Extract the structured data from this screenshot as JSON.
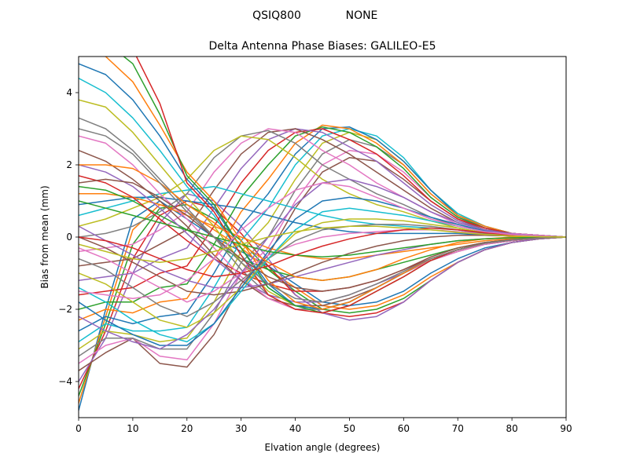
{
  "suptitle": {
    "antenna": "QSIQ800",
    "radome": "NONE"
  },
  "chart_data": {
    "type": "line",
    "title": "Delta Antenna Phase Biases: GALILEO-E5",
    "xlabel": "Elvation angle (degrees)",
    "ylabel": "Bias from mean (mm)",
    "xlim": [
      0,
      90
    ],
    "ylim": [
      -5,
      5
    ],
    "xticks": [
      0,
      10,
      20,
      30,
      40,
      50,
      60,
      70,
      80,
      90
    ],
    "yticks": [
      -4,
      -2,
      0,
      2,
      4
    ],
    "grid": false,
    "x": [
      0,
      5,
      10,
      15,
      20,
      25,
      30,
      35,
      40,
      45,
      50,
      55,
      60,
      65,
      70,
      75,
      80,
      85,
      90
    ],
    "colors": [
      "#1f77b4",
      "#ff7f0e",
      "#2ca02c",
      "#d62728",
      "#9467bd",
      "#8c564b",
      "#e377c2",
      "#7f7f7f",
      "#bcbd22",
      "#17becf"
    ],
    "series": [
      {
        "values": [
          -4.8,
          -2.0,
          0.5,
          1.0,
          0.5,
          0.0,
          -0.4,
          -0.8,
          -1.3,
          -1.8,
          -1.9,
          -1.8,
          -1.5,
          -1.0,
          -0.6,
          -0.3,
          -0.15,
          -0.05,
          0.0
        ]
      },
      {
        "values": [
          -4.6,
          -2.2,
          0.2,
          0.9,
          0.7,
          0.2,
          -0.3,
          -0.9,
          -1.4,
          -1.9,
          -2.0,
          -1.9,
          -1.6,
          -1.1,
          -0.7,
          -0.35,
          -0.15,
          -0.05,
          0.0
        ]
      },
      {
        "values": [
          -4.4,
          -2.4,
          -0.2,
          0.8,
          0.9,
          0.5,
          -0.1,
          -0.9,
          -1.5,
          -2.0,
          -2.1,
          -2.0,
          -1.7,
          -1.2,
          -0.7,
          -0.35,
          -0.15,
          -0.05,
          0.0
        ]
      },
      {
        "values": [
          -4.2,
          -2.6,
          -0.6,
          0.6,
          1.0,
          0.8,
          0.1,
          -0.8,
          -1.6,
          -2.1,
          -2.2,
          -2.1,
          -1.8,
          -1.2,
          -0.7,
          -0.35,
          -0.15,
          -0.05,
          0.0
        ]
      },
      {
        "values": [
          -4.0,
          -2.8,
          -1.0,
          0.4,
          1.2,
          1.0,
          0.3,
          -0.6,
          -1.6,
          -2.1,
          -2.3,
          -2.2,
          -1.8,
          -1.2,
          -0.7,
          -0.35,
          -0.15,
          -0.05,
          0.0
        ]
      },
      {
        "values": [
          -3.7,
          -3.2,
          -2.8,
          -3.5,
          -3.6,
          -2.7,
          -1.3,
          -0.5,
          0.8,
          1.8,
          2.2,
          2.1,
          1.6,
          1.0,
          0.5,
          0.2,
          0.1,
          0.05,
          0.0
        ]
      },
      {
        "values": [
          -3.5,
          -3.0,
          -2.8,
          -3.3,
          -3.4,
          -2.4,
          -1.0,
          -0.3,
          1.0,
          2.0,
          2.4,
          2.3,
          1.8,
          1.1,
          0.55,
          0.25,
          0.1,
          0.05,
          0.0
        ]
      },
      {
        "values": [
          -3.3,
          -2.8,
          -2.8,
          -3.1,
          -3.1,
          -2.1,
          -0.7,
          0.0,
          1.3,
          2.3,
          2.7,
          2.5,
          2.0,
          1.2,
          0.6,
          0.25,
          0.1,
          0.05,
          0.0
        ]
      },
      {
        "values": [
          -3.1,
          -2.6,
          -2.7,
          -2.9,
          -2.8,
          -1.8,
          -0.4,
          0.4,
          1.6,
          2.6,
          2.9,
          2.7,
          2.1,
          1.3,
          0.65,
          0.3,
          0.1,
          0.05,
          0.0
        ]
      },
      {
        "values": [
          -2.9,
          -2.4,
          -2.6,
          -2.6,
          -2.5,
          -1.4,
          -0.1,
          0.8,
          2.0,
          2.8,
          3.0,
          2.8,
          2.2,
          1.3,
          0.65,
          0.3,
          0.1,
          0.05,
          0.0
        ]
      },
      {
        "values": [
          -2.6,
          -2.2,
          -2.4,
          -2.2,
          -2.1,
          -1.0,
          0.3,
          1.2,
          2.3,
          3.0,
          3.05,
          2.7,
          2.1,
          1.3,
          0.6,
          0.3,
          0.1,
          0.05,
          0.0
        ]
      },
      {
        "values": [
          -2.3,
          -2.0,
          -2.1,
          -1.8,
          -1.7,
          -0.6,
          0.7,
          1.6,
          2.6,
          3.1,
          3.0,
          2.6,
          2.0,
          1.2,
          0.6,
          0.3,
          0.1,
          0.05,
          0.0
        ]
      },
      {
        "values": [
          -2.0,
          -1.8,
          -1.8,
          -1.4,
          -1.3,
          -0.2,
          1.1,
          2.0,
          2.8,
          3.05,
          2.9,
          2.5,
          1.9,
          1.1,
          0.55,
          0.25,
          0.1,
          0.05,
          0.0
        ]
      },
      {
        "values": [
          -1.6,
          -1.5,
          -1.4,
          -1.0,
          -0.8,
          0.3,
          1.5,
          2.4,
          2.9,
          3.0,
          2.7,
          2.3,
          1.7,
          1.0,
          0.5,
          0.25,
          0.1,
          0.05,
          0.0
        ]
      },
      {
        "values": [
          -1.2,
          -1.1,
          -1.0,
          -0.6,
          -0.3,
          0.8,
          1.9,
          2.7,
          3.0,
          2.9,
          2.5,
          2.1,
          1.5,
          0.9,
          0.45,
          0.2,
          0.1,
          0.05,
          0.0
        ]
      },
      {
        "values": [
          -0.8,
          -0.7,
          -0.6,
          -0.2,
          0.2,
          1.3,
          2.3,
          2.9,
          3.0,
          2.7,
          2.3,
          1.8,
          1.3,
          0.8,
          0.4,
          0.2,
          0.1,
          0.05,
          0.0
        ]
      },
      {
        "values": [
          -0.4,
          -0.3,
          -0.2,
          0.2,
          0.7,
          1.8,
          2.6,
          3.0,
          2.9,
          2.4,
          2.0,
          1.5,
          1.1,
          0.7,
          0.35,
          0.15,
          0.1,
          0.05,
          0.0
        ]
      },
      {
        "values": [
          0.0,
          0.1,
          0.3,
          0.7,
          1.2,
          2.2,
          2.8,
          2.95,
          2.6,
          2.0,
          1.6,
          1.2,
          0.9,
          0.55,
          0.3,
          0.15,
          0.05,
          0.02,
          0.0
        ]
      },
      {
        "values": [
          0.3,
          0.5,
          0.8,
          1.1,
          1.6,
          2.4,
          2.8,
          2.7,
          2.2,
          1.6,
          1.2,
          0.9,
          0.7,
          0.45,
          0.25,
          0.1,
          0.05,
          0.02,
          0.0
        ]
      },
      {
        "values": [
          0.6,
          0.8,
          1.0,
          1.2,
          1.3,
          1.4,
          1.2,
          1.0,
          0.8,
          0.6,
          0.45,
          0.35,
          0.3,
          0.25,
          0.2,
          0.1,
          0.05,
          0.02,
          0.0
        ]
      },
      {
        "values": [
          0.9,
          1.0,
          1.1,
          1.1,
          1.0,
          0.9,
          0.8,
          0.6,
          0.4,
          0.25,
          0.15,
          0.1,
          0.1,
          0.1,
          0.1,
          0.05,
          0.03,
          0.01,
          0.0
        ]
      },
      {
        "values": [
          1.2,
          1.2,
          1.1,
          0.9,
          0.6,
          0.3,
          0.0,
          -0.3,
          -0.5,
          -0.6,
          -0.6,
          -0.5,
          -0.4,
          -0.3,
          -0.2,
          -0.1,
          -0.05,
          -0.02,
          0.0
        ]
      },
      {
        "values": [
          1.4,
          1.3,
          1.0,
          0.6,
          0.2,
          -0.2,
          -0.6,
          -0.9,
          -1.1,
          -1.2,
          -1.1,
          -0.9,
          -0.7,
          -0.5,
          -0.3,
          -0.15,
          -0.07,
          -0.02,
          0.0
        ]
      },
      {
        "values": [
          1.7,
          1.5,
          1.1,
          0.5,
          -0.1,
          -0.6,
          -1.0,
          -1.3,
          -1.5,
          -1.5,
          -1.4,
          -1.2,
          -0.9,
          -0.6,
          -0.35,
          -0.17,
          -0.08,
          -0.03,
          0.0
        ]
      },
      {
        "values": [
          2.0,
          1.8,
          1.4,
          0.8,
          0.1,
          -0.6,
          -1.2,
          -1.6,
          -1.8,
          -1.8,
          -1.6,
          -1.3,
          -1.0,
          -0.65,
          -0.4,
          -0.2,
          -0.1,
          -0.03,
          0.0
        ]
      },
      {
        "values": [
          2.4,
          2.1,
          1.6,
          1.0,
          0.3,
          -0.5,
          -1.2,
          -1.7,
          -1.9,
          -1.9,
          -1.7,
          -1.4,
          -1.0,
          -0.65,
          -0.4,
          -0.2,
          -0.1,
          -0.03,
          0.0
        ]
      },
      {
        "values": [
          2.8,
          2.6,
          2.0,
          1.2,
          0.5,
          -0.3,
          -1.1,
          -1.7,
          -2.0,
          -2.0,
          -1.8,
          -1.4,
          -1.0,
          -0.65,
          -0.4,
          -0.2,
          -0.1,
          -0.03,
          0.0
        ]
      },
      {
        "values": [
          3.3,
          3.0,
          2.4,
          1.6,
          0.8,
          0.0,
          -0.9,
          -1.6,
          -2.0,
          -2.0,
          -1.8,
          -1.4,
          -1.0,
          -0.6,
          -0.35,
          -0.17,
          -0.08,
          -0.03,
          0.0
        ]
      },
      {
        "values": [
          3.8,
          3.6,
          2.9,
          2.0,
          1.1,
          0.3,
          -0.7,
          -1.5,
          -1.9,
          -2.0,
          -1.8,
          -1.4,
          -1.0,
          -0.6,
          -0.35,
          -0.17,
          -0.08,
          -0.03,
          0.0
        ]
      },
      {
        "values": [
          4.4,
          4.0,
          3.3,
          2.4,
          1.4,
          0.6,
          -0.5,
          -1.4,
          -1.9,
          -2.0,
          -1.8,
          -1.4,
          -1.0,
          -0.6,
          -0.35,
          -0.17,
          -0.08,
          -0.03,
          0.0
        ]
      },
      {
        "values": [
          4.8,
          4.5,
          3.8,
          2.8,
          1.6,
          0.8,
          -0.3,
          -1.3,
          -1.9,
          -2.0,
          -1.8,
          -1.4,
          -1.0,
          -0.6,
          -0.35,
          -0.17,
          -0.08,
          -0.03,
          0.0
        ]
      },
      {
        "values": [
          5.2,
          5.0,
          4.3,
          3.1,
          1.8,
          1.0,
          -0.1,
          -1.2,
          -1.8,
          -2.0,
          -1.8,
          -1.4,
          -1.0,
          -0.6,
          -0.35,
          -0.17,
          -0.08,
          -0.03,
          0.0
        ]
      },
      {
        "values": [
          5.6,
          5.4,
          4.8,
          3.4,
          1.7,
          0.9,
          -0.3,
          -1.4,
          -1.9,
          -2.1,
          -1.9,
          -1.5,
          -1.1,
          -0.65,
          -0.35,
          -0.17,
          -0.08,
          -0.03,
          0.0
        ]
      },
      {
        "values": [
          6.0,
          5.8,
          5.2,
          3.7,
          1.5,
          0.7,
          -0.5,
          -1.6,
          -2.0,
          -2.1,
          -1.9,
          -1.5,
          -1.1,
          -0.65,
          -0.35,
          -0.17,
          -0.08,
          -0.03,
          0.0
        ]
      },
      {
        "values": [
          0.3,
          -0.1,
          -0.5,
          -0.9,
          -1.2,
          -1.4,
          -1.4,
          -1.3,
          -1.1,
          -0.9,
          -0.7,
          -0.5,
          -0.35,
          -0.2,
          -0.1,
          -0.05,
          -0.02,
          -0.01,
          0.0
        ]
      },
      {
        "values": [
          0.0,
          -0.3,
          -0.7,
          -1.1,
          -1.5,
          -1.6,
          -1.5,
          -1.3,
          -1.0,
          -0.7,
          -0.45,
          -0.25,
          -0.1,
          0.0,
          0.05,
          0.05,
          0.03,
          0.01,
          0.0
        ]
      },
      {
        "values": [
          -0.3,
          -0.6,
          -1.0,
          -1.4,
          -1.8,
          -1.5,
          -1.0,
          -0.5,
          -0.2,
          0.0,
          0.1,
          0.15,
          0.2,
          0.2,
          0.15,
          0.1,
          0.05,
          0.02,
          0.0
        ]
      },
      {
        "values": [
          -0.6,
          -0.9,
          -1.4,
          -1.9,
          -2.2,
          -1.8,
          -1.2,
          -0.6,
          -0.1,
          0.2,
          0.3,
          0.35,
          0.35,
          0.3,
          0.2,
          0.1,
          0.05,
          0.02,
          0.0
        ]
      },
      {
        "values": [
          -1.0,
          -1.3,
          -1.8,
          -2.3,
          -2.5,
          -2.1,
          -1.4,
          -0.6,
          0.1,
          0.4,
          0.5,
          0.5,
          0.45,
          0.35,
          0.25,
          0.12,
          0.06,
          0.02,
          0.0
        ]
      },
      {
        "values": [
          -1.4,
          -1.8,
          -2.3,
          -2.7,
          -2.9,
          -2.4,
          -1.5,
          -0.6,
          0.2,
          0.7,
          0.8,
          0.7,
          0.6,
          0.45,
          0.3,
          0.15,
          0.07,
          0.02,
          0.0
        ]
      },
      {
        "values": [
          -1.8,
          -2.3,
          -2.7,
          -3.0,
          -3.0,
          -2.4,
          -1.4,
          -0.4,
          0.5,
          1.0,
          1.1,
          1.0,
          0.8,
          0.55,
          0.35,
          0.17,
          0.08,
          0.02,
          0.0
        ]
      },
      {
        "values": [
          2.0,
          2.0,
          1.9,
          1.5,
          0.9,
          0.4,
          -0.2,
          -0.7,
          -1.1,
          -1.2,
          -1.1,
          -0.9,
          -0.6,
          -0.35,
          -0.15,
          -0.05,
          0.0,
          0.0,
          0.0
        ]
      },
      {
        "values": [
          1.0,
          0.8,
          0.6,
          0.4,
          0.2,
          0.0,
          -0.2,
          -0.4,
          -0.5,
          -0.55,
          -0.5,
          -0.4,
          -0.3,
          -0.2,
          -0.1,
          -0.05,
          -0.02,
          -0.01,
          0.0
        ]
      },
      {
        "values": [
          0.0,
          -0.1,
          -0.3,
          -0.6,
          -0.9,
          -1.1,
          -1.0,
          -0.8,
          -0.5,
          -0.25,
          -0.05,
          0.1,
          0.2,
          0.25,
          0.2,
          0.12,
          0.06,
          0.02,
          0.0
        ]
      },
      {
        "values": [
          -2.2,
          -2.6,
          -2.9,
          -3.1,
          -2.7,
          -2.0,
          -1.0,
          0.0,
          0.9,
          1.5,
          1.6,
          1.4,
          1.1,
          0.7,
          0.4,
          0.2,
          0.08,
          0.02,
          0.0
        ]
      },
      {
        "values": [
          1.5,
          1.6,
          1.5,
          1.1,
          0.6,
          0.0,
          -0.6,
          -1.1,
          -1.4,
          -1.5,
          -1.4,
          -1.2,
          -0.9,
          -0.55,
          -0.3,
          -0.15,
          -0.07,
          -0.02,
          0.0
        ]
      },
      {
        "values": [
          -1.5,
          -1.6,
          -1.7,
          -1.6,
          -1.2,
          -0.6,
          0.2,
          0.8,
          1.3,
          1.5,
          1.4,
          1.1,
          0.8,
          0.5,
          0.3,
          0.15,
          0.07,
          0.02,
          0.0
        ]
      },
      {
        "values": [
          3.0,
          2.8,
          2.3,
          1.5,
          0.7,
          0.0,
          -0.7,
          -1.3,
          -1.7,
          -1.8,
          -1.6,
          -1.3,
          -0.95,
          -0.6,
          -0.35,
          -0.17,
          -0.08,
          -0.03,
          0.0
        ]
      },
      {
        "values": [
          -0.2,
          -0.4,
          -0.6,
          -0.7,
          -0.6,
          -0.4,
          -0.2,
          0.0,
          0.15,
          0.25,
          0.3,
          0.3,
          0.25,
          0.2,
          0.13,
          0.07,
          0.03,
          0.01,
          0.0
        ]
      }
    ]
  }
}
